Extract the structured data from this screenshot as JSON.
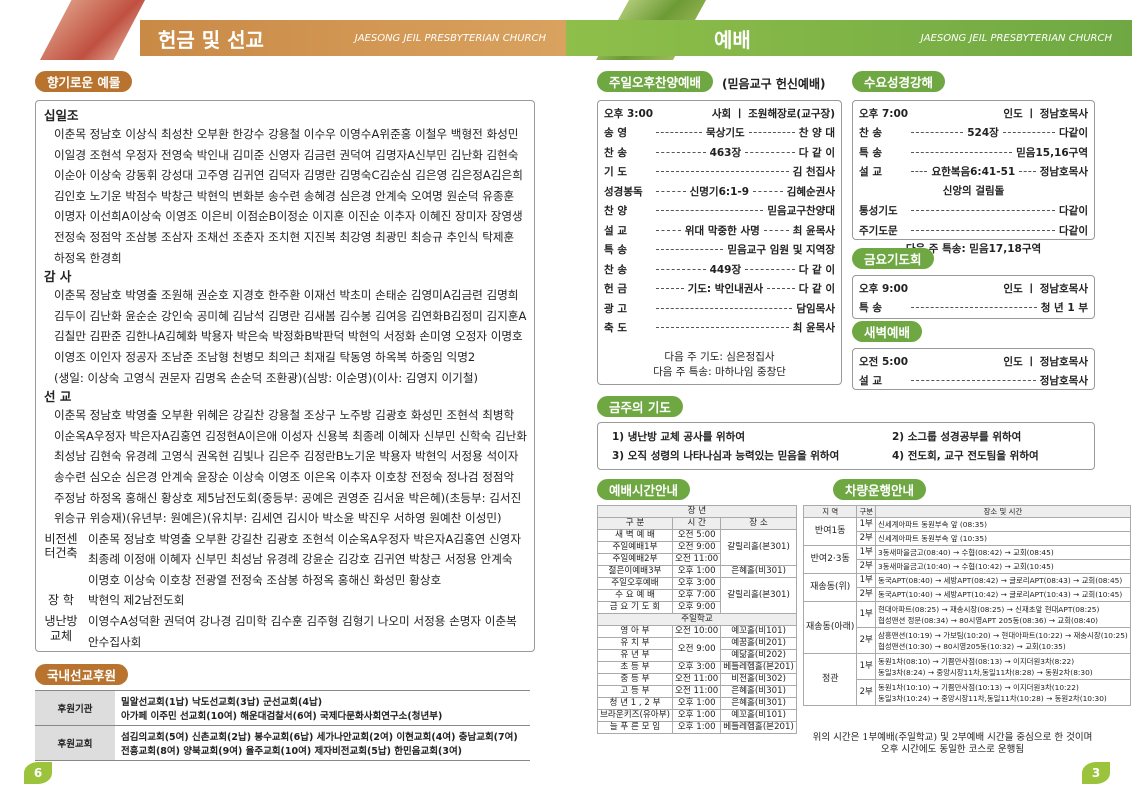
{
  "header_left": {
    "title": "헌금 및 선교",
    "subtitle": "JAESONG JEIL PRESBYTERIAN CHURCH"
  },
  "header_right": {
    "title": "예배",
    "subtitle": "JAESONG JEIL PRESBYTERIAN CHURCH"
  },
  "offerings": {
    "title": "향기로운 예물",
    "groups": [
      {
        "label": "십일조",
        "lines": [
          "이춘목 정남호 이상식 최성찬 오부환 한강수 강용철 이수우 이영수A위준홍 이철우 백형전 화성민",
          "이일경 조현석 우정자 전영숙 박인내 김미준 신영자 김금련 권덕여 김명자A신부민 김난화 김현숙",
          "이순아 이상숙 강동휘 강성대 고주영 김귀연 김덕자 김명란 김명숙C김순심 김은영 김은정A김은희",
          "김인호 노기운 박점수 박창근 박현익 변화분 송수련 송혜경 심은경 안계숙 오여명 원순덕 유종훈",
          "이명자 이선희A이상숙 이영조 이은비 이점순B이정순 이지훈 이진순 이추자 이혜진 장미자 장영생",
          "전정숙 정점악 조삼봉 조삼자 조채선 조춘자 조치현 지진복 최강영 최광민 최승규 추인식 탁제훈",
          "하정옥 한경희"
        ]
      },
      {
        "label": "감 사",
        "lines": [
          "이춘목 정남호 박영출 조원해 권순호 지경호 한주환 이재선 박초미 손태순 김영미A김금련 김명희",
          "김두이 김난화 윤순순 강인숙 공미혜 김남석 김명란 김새봄 김수봉 김여응 김연화B김정미 김지훈A",
          "김칠만 김판준 김한나A김혜화 박용자 박은숙 박정화B박판덕 박현익 서정화 손미영 오정자 이명호",
          "이영조 이인자 정공자 조남준 조남형 천병모 최의근 최재길 탁동영 하옥복 하중임 익명2",
          "(생일: 이상숙 고영식 권문자 김명옥 손순덕 조환광)(심방: 이순명)(이사: 김영지 이기철)"
        ]
      },
      {
        "label": "선 교",
        "lines": [
          "이춘목 정남호 박영출 오부환 위혜은 강길찬 강용철 조상구 노주방 김광호 화성민 조현석 최병학",
          "이순옥A우정자 박은자A김홍연 김정현A이은애 이성자 신용복 최종례 이혜자 신부민 신학숙 김난화",
          "최성남 김현숙 유경례 고영식 권옥현 김빛나 김은주 김정란B노기운 박용자 박현익 서정용 석이자",
          "송수련 심오순 심은경 안계숙 윤장순 이상숙 이영조 이은옥 이추자 이호창 전정숙 정나검 정점악",
          "주정남 하정옥 홍해신 황상호 제5남전도회(중등부: 공예은 권영준 김서윤 박은혜)(초등부: 김서진",
          "위승규 위승재)(유년부: 원예은)(유치부: 김세연 김시아 박소윤 박진우 서하영 원예찬 이성민)"
        ]
      },
      {
        "label": "비전센터건축",
        "lines": [
          "이춘목 정남호 박영출 오부환 강길찬 김광호 조현석 이순옥A우정자 박은자A김홍연 신영자",
          "최종례 이정애 이혜자 신부민 최성남 유경례 강윤순 김강호 김귀연 박창근 서정용 안계숙",
          "이명호 이상숙 이호창 전광열 전정숙 조삼봉 하정옥 홍해신 화성민 황상호"
        ]
      },
      {
        "label": "장 학",
        "lines": [
          "박현익 제2남전도회"
        ]
      },
      {
        "label": "냉난방 교체",
        "lines": [
          "이영수A성덕환 권덕여 강나경 김미학 김수훈 김주형 김형기 나오미 서정용 손명자 이춘복",
          "안수집사회"
        ]
      }
    ]
  },
  "mission_support": {
    "title": "국내선교후원",
    "rows": [
      {
        "label": "후원기관",
        "lines": [
          "밀알선교회(1납) 낙도선교회(3납) 군선교회(4납)",
          "아가페 이주민 선교회(10여) 해운대검찰서(6여) 국제다문화사회연구소(청년부)"
        ]
      },
      {
        "label": "후원교회",
        "lines": [
          "섬김의교회(5여) 신촌교회(2납) 봉수교회(6납) 세가나안교회(2여) 이현교회(4여) 충남교회(7여)",
          "전흥교회(8여) 양북교회(9여) 율주교회(10여) 제자비전교회(5납) 한민음교회(3여)"
        ]
      }
    ]
  },
  "page_left": "6",
  "page_right": "3",
  "sunday_afternoon": {
    "title": "주일오후찬양예배",
    "subtitle": "(믿음교구 헌신예배)",
    "time": "오후 3:00",
    "host": "사회 ㅣ 조원해장로(교구장)",
    "rows": [
      {
        "part": "송 영",
        "content": "묵상기도",
        "leader": "찬 양 대"
      },
      {
        "part": "찬 송",
        "content": "463장",
        "leader": "다 같 이"
      },
      {
        "part": "기 도",
        "leader": "김 천집사"
      },
      {
        "part": "성경봉독",
        "content": "신명기6:1-9",
        "leader": "김혜순권사"
      },
      {
        "part": "찬 양",
        "leader": "믿음교구찬양대"
      },
      {
        "part": "설 교",
        "content": "위대 막중한 사명",
        "leader": "최 윤목사"
      },
      {
        "part": "특 송",
        "leader": "믿음교구 임원 및 지역장"
      },
      {
        "part": "찬 송",
        "content": "449장",
        "leader": "다 같 이"
      },
      {
        "part": "헌 금",
        "content": "기도: 박인내권사",
        "leader": "다 같 이"
      },
      {
        "part": "광 고",
        "leader": "담임목사"
      },
      {
        "part": "축 도",
        "leader": "최 윤목사"
      }
    ],
    "notes": [
      "다음 주 기도: 심은정집사",
      "다음 주 특송: 마하나임 중창단"
    ]
  },
  "wednesday": {
    "title": "수요성경강해",
    "time": "오후 7:00",
    "host": "인도 ㅣ 정남호목사",
    "rows": [
      {
        "part": "찬 송",
        "content": "524장",
        "leader": "다같이"
      },
      {
        "part": "특 송",
        "leader": "믿음15,16구역"
      },
      {
        "part": "설 교",
        "content": "요한복음6:41-51",
        "leader": "정남호목사"
      },
      {
        "text": "신앙의 걸림돌"
      },
      {
        "part": "통성기도",
        "leader": "다같이"
      },
      {
        "part": "주기도문",
        "leader": "다같이"
      },
      {
        "text": "다음 주 특송: 믿음17,18구역"
      }
    ]
  },
  "friday": {
    "title": "금요기도회",
    "time": "오후 9:00",
    "host": "인도 ㅣ 정남호목사",
    "rows": [
      {
        "part": "특 송",
        "leader": "청 년 1 부"
      }
    ]
  },
  "dawn": {
    "title": "새벽예배",
    "time": "오전 5:00",
    "host": "인도 ㅣ 정남호목사",
    "rows": [
      {
        "part": "설 교",
        "leader": "정남호목사"
      }
    ]
  },
  "prayer": {
    "title": "금주의 기도",
    "items": [
      "1) 냉난방 교체 공사를 위하여",
      "2) 소그룹 성경공부를 위하여",
      "3) 오직 성령의 나타나심과 능력있는 믿음을 위하여",
      "4) 전도회, 교구 전도팀을 위하여"
    ]
  },
  "schedule": {
    "title": "예배시간안내",
    "adult_heading": "장 년",
    "columns": [
      "구 분",
      "시 간",
      "장 소"
    ],
    "adult_rows": [
      {
        "name": "새 벽 예 배",
        "time": "오전 5:00",
        "place": "갈릴리홀(본301)"
      },
      {
        "name": "주일예배1부",
        "time": "오전 9:00"
      },
      {
        "name": "주일예배2부",
        "time": "오전 11:00"
      },
      {
        "name": "젊은이예배3부",
        "time": "오후 1:00",
        "place": "은혜홀(비301)"
      },
      {
        "name": "주일오후예배",
        "time": "오후 3:00",
        "place": "갈릴리홀(본301)"
      },
      {
        "name": "수 요 예 배",
        "time": "오후 7:00"
      },
      {
        "name": "금 요 기 도 회",
        "time": "오후 9:00"
      }
    ],
    "school_heading": "주일학교",
    "school_rows": [
      {
        "name": "영 아 부",
        "time": "오전 10:00",
        "place": "예꼬홀(비101)"
      },
      {
        "name": "유 치 부",
        "time": "오전 9:00",
        "place": "예꿈홀(비201)"
      },
      {
        "name": "유 년 부",
        "place": "예닮홀(비202)"
      },
      {
        "name": "초 등 부",
        "time": "오후 3:00",
        "place": "베들레헴홀(본201)"
      },
      {
        "name": "중 등 부",
        "time": "오전 11:00",
        "place": "비전홀(비302)"
      },
      {
        "name": "고 등 부",
        "time": "오전 11:00",
        "place": "은혜홀(비301)"
      },
      {
        "name": "청 년 1 , 2 부",
        "time": "오후 1:00",
        "place": "은혜홀(비301)"
      },
      {
        "name": "브라운키즈(유아부)",
        "time": "오후 1:00",
        "place": "예꼬홀(비101)"
      },
      {
        "name": "늘 푸 른 모 임",
        "time": "오후 1:00",
        "place": "베들레헴홀(본201)"
      }
    ]
  },
  "vehicle": {
    "title": "차량운행안내",
    "columns": [
      "지 역",
      "구분",
      "장소 및 시간"
    ],
    "areas": [
      {
        "area": "반여1동",
        "runs": [
          {
            "part": "1부",
            "lines": [
              "신세계아파트 동원부속 앞 (08:35)"
            ]
          },
          {
            "part": "2부",
            "lines": [
              "신세계아파트 동원부속 앞 (10:35)"
            ]
          }
        ]
      },
      {
        "area": "반여2·3동",
        "runs": [
          {
            "part": "1부",
            "lines": [
              "3동새마을금고(08:40) → 수협(08:42) → 교회(08:45)"
            ]
          },
          {
            "part": "2부",
            "lines": [
              "3동새마을금고(10:40) → 수협(10:42) → 교회(10:45)"
            ]
          }
        ]
      },
      {
        "area": "재송동(위)",
        "runs": [
          {
            "part": "1부",
            "lines": [
              "동국APT(08:40) → 세방APT(08:42) → 글로리APT(08:43) → 교회(08:45)"
            ]
          },
          {
            "part": "2부",
            "lines": [
              "동국APT(10:40) → 세방APT(10:42) → 글로리APT(10:43) → 교회(10:45)"
            ]
          }
        ]
      },
      {
        "area": "재송동(아래)",
        "runs": [
          {
            "part": "1부",
            "lines": [
              "현대아파트(08:25) → 재송시장(08:25) → 신재초앞 현대APT(08:25)",
              "협성맨션 정문(08:34) → 80시영APT 205동(08:36) → 교회(08:40)"
            ]
          },
          {
            "part": "2부",
            "lines": [
              "삼흥맨션(10:19) → 가보팀(10:20) → 현대아파트(10:22) → 재송시장(10:25)",
              "협성맨션(10:30) → 80시영205동(10:32) → 교회(10:35)"
            ]
          }
        ]
      },
      {
        "area": "정관",
        "runs": [
          {
            "part": "1부",
            "lines": [
              "동원1차(08:10) → 기쁨만사점(08:13) → 이지더원3차(8:22)",
              "동일3차(8:24) → 중앙시장11차,동일11차(8:28) → 동원2차(8:30)"
            ]
          },
          {
            "part": "2부",
            "lines": [
              "동원1차(10:10) → 기쁨만사점(10:13) → 이지더원3차(10:22)",
              "동일3차(10:24) → 중앙시장11차,동일11차(10:28) → 동원2차(10:30)"
            ]
          }
        ]
      }
    ],
    "note": "위의 시간은 1부예배(주일학교) 및 2부예배 시간을 중심으로 한 것이며 오후 시간에도 동일한 코스로 운행됨"
  }
}
